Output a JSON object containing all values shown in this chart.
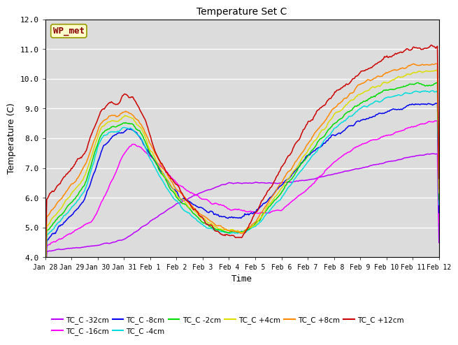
{
  "title": "Temperature Set C",
  "xlabel": "Time",
  "ylabel": "Temperature (C)",
  "ylim": [
    4.0,
    12.0
  ],
  "yticks": [
    4.0,
    5.0,
    6.0,
    7.0,
    8.0,
    9.0,
    10.0,
    11.0,
    12.0
  ],
  "bg_color": "#dcdcdc",
  "series": [
    {
      "label": "TC_C -32cm",
      "color": "#bb00ff"
    },
    {
      "label": "TC_C -16cm",
      "color": "#ff00ff"
    },
    {
      "label": "TC_C -8cm",
      "color": "#0000ee"
    },
    {
      "label": "TC_C -4cm",
      "color": "#00dddd"
    },
    {
      "label": "TC_C -2cm",
      "color": "#00dd00"
    },
    {
      "label": "TC_C +4cm",
      "color": "#dddd00"
    },
    {
      "label": "TC_C +8cm",
      "color": "#ff8800"
    },
    {
      "label": "TC_C +12cm",
      "color": "#cc0000"
    }
  ],
  "wp_met_color": "#880000",
  "wp_met_bg": "#ffffcc",
  "wp_met_border": "#999900",
  "num_points": 500
}
